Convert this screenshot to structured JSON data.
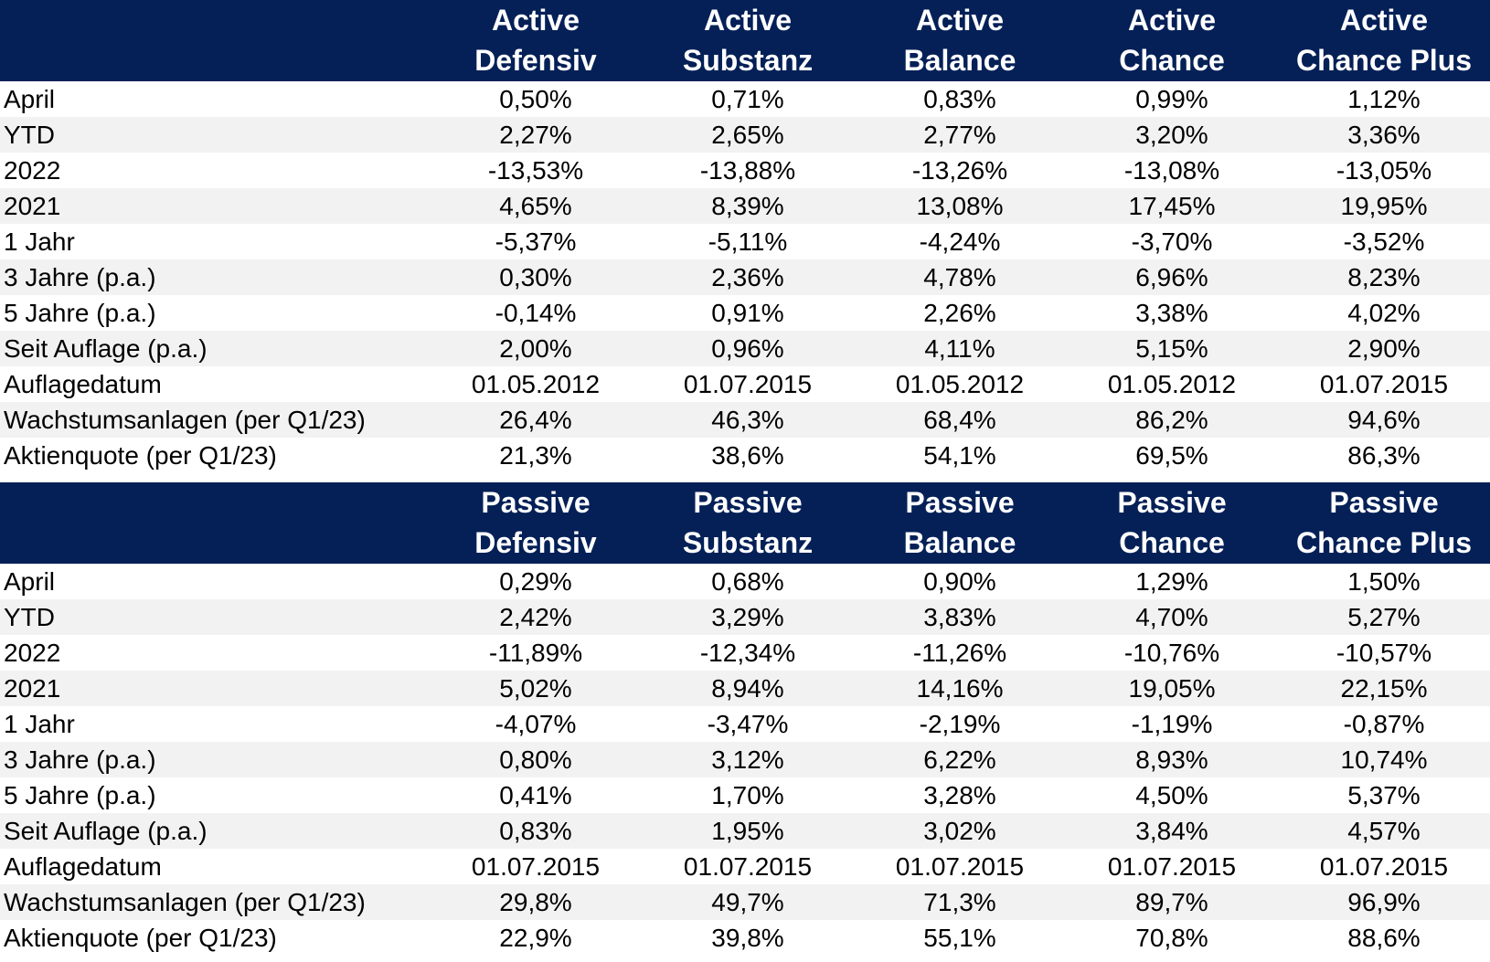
{
  "active": {
    "headers": [
      {
        "line1": "",
        "line2": ""
      },
      {
        "line1": "Active",
        "line2": "Defensiv"
      },
      {
        "line1": "Active",
        "line2": "Substanz"
      },
      {
        "line1": "Active",
        "line2": "Balance"
      },
      {
        "line1": "Active",
        "line2": "Chance"
      },
      {
        "line1": "Active",
        "line2": "Chance Plus"
      }
    ],
    "rows": [
      [
        "April",
        "0,50%",
        "0,71%",
        "0,83%",
        "0,99%",
        "1,12%"
      ],
      [
        "YTD",
        "2,27%",
        "2,65%",
        "2,77%",
        "3,20%",
        "3,36%"
      ],
      [
        "2022",
        "-13,53%",
        "-13,88%",
        "-13,26%",
        "-13,08%",
        "-13,05%"
      ],
      [
        "2021",
        "4,65%",
        "8,39%",
        "13,08%",
        "17,45%",
        "19,95%"
      ],
      [
        "1 Jahr",
        "-5,37%",
        "-5,11%",
        "-4,24%",
        "-3,70%",
        "-3,52%"
      ],
      [
        "3 Jahre (p.a.)",
        "0,30%",
        "2,36%",
        "4,78%",
        "6,96%",
        "8,23%"
      ],
      [
        "5 Jahre (p.a.)",
        "-0,14%",
        "0,91%",
        "2,26%",
        "3,38%",
        "4,02%"
      ],
      [
        "Seit Auflage (p.a.)",
        "2,00%",
        "0,96%",
        "4,11%",
        "5,15%",
        "2,90%"
      ],
      [
        "Auflagedatum",
        "01.05.2012",
        "01.07.2015",
        "01.05.2012",
        "01.05.2012",
        "01.07.2015"
      ],
      [
        "Wachstumsanlagen (per Q1/23)",
        "26,4%",
        "46,3%",
        "68,4%",
        "86,2%",
        "94,6%"
      ],
      [
        "Aktienquote (per Q1/23)",
        "21,3%",
        "38,6%",
        "54,1%",
        "69,5%",
        "86,3%"
      ]
    ]
  },
  "passive": {
    "headers": [
      {
        "line1": "",
        "line2": ""
      },
      {
        "line1": "Passive",
        "line2": "Defensiv"
      },
      {
        "line1": "Passive",
        "line2": "Substanz"
      },
      {
        "line1": "Passive",
        "line2": "Balance"
      },
      {
        "line1": "Passive",
        "line2": "Chance"
      },
      {
        "line1": "Passive",
        "line2": "Chance Plus"
      }
    ],
    "rows": [
      [
        "April",
        "0,29%",
        "0,68%",
        "0,90%",
        "1,29%",
        "1,50%"
      ],
      [
        "YTD",
        "2,42%",
        "3,29%",
        "3,83%",
        "4,70%",
        "5,27%"
      ],
      [
        "2022",
        "-11,89%",
        "-12,34%",
        "-11,26%",
        "-10,76%",
        "-10,57%"
      ],
      [
        "2021",
        "5,02%",
        "8,94%",
        "14,16%",
        "19,05%",
        "22,15%"
      ],
      [
        "1 Jahr",
        "-4,07%",
        "-3,47%",
        "-2,19%",
        "-1,19%",
        "-0,87%"
      ],
      [
        "3 Jahre (p.a.)",
        "0,80%",
        "3,12%",
        "6,22%",
        "8,93%",
        "10,74%"
      ],
      [
        "5 Jahre (p.a.)",
        "0,41%",
        "1,70%",
        "3,28%",
        "4,50%",
        "5,37%"
      ],
      [
        "Seit Auflage (p.a.)",
        "0,83%",
        "1,95%",
        "3,02%",
        "3,84%",
        "4,57%"
      ],
      [
        "Auflagedatum",
        "01.07.2015",
        "01.07.2015",
        "01.07.2015",
        "01.07.2015",
        "01.07.2015"
      ],
      [
        "Wachstumsanlagen (per Q1/23)",
        "29,8%",
        "49,7%",
        "71,3%",
        "89,7%",
        "96,9%"
      ],
      [
        "Aktienquote (per Q1/23)",
        "22,9%",
        "39,8%",
        "55,1%",
        "70,8%",
        "88,6%"
      ]
    ]
  },
  "colors": {
    "header_bg": "#042057",
    "header_text": "#ffffff",
    "stripe_bg": "#f2f2f2"
  }
}
